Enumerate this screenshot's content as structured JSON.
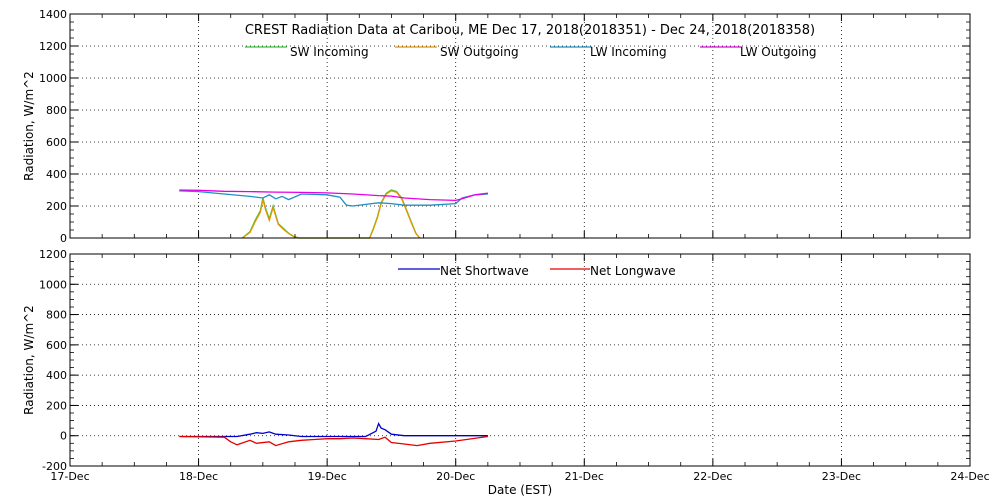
{
  "chart_data": [
    {
      "type": "line",
      "title": "CREST Radiation Data at Caribou, ME   Dec 17, 2018(2018351) - Dec 24, 2018(2018358)",
      "xlabel": "",
      "ylabel": "Radiation, W/m^2",
      "ylim": [
        0,
        1400
      ],
      "yticks": [
        0,
        200,
        400,
        600,
        800,
        1000,
        1200,
        1400
      ],
      "xlim": [
        0,
        7
      ],
      "grid": true,
      "legend_position": "top",
      "series": [
        {
          "name": "SW Incoming",
          "color": "#33cc33",
          "x": [
            1.34,
            1.4,
            1.44,
            1.48,
            1.5,
            1.52,
            1.55,
            1.58,
            1.62,
            1.66,
            1.7,
            1.74,
            1.78,
            2.33,
            2.36,
            2.39,
            2.42,
            2.46,
            2.5,
            2.54,
            2.58,
            2.62,
            2.66,
            2.69,
            2.72
          ],
          "y": [
            0,
            40,
            110,
            170,
            250,
            190,
            120,
            200,
            90,
            60,
            30,
            10,
            0,
            0,
            60,
            130,
            220,
            280,
            300,
            290,
            250,
            170,
            90,
            30,
            0
          ]
        },
        {
          "name": "SW Outgoing",
          "color": "#e69500",
          "x": [
            1.34,
            1.4,
            1.44,
            1.48,
            1.5,
            1.52,
            1.55,
            1.58,
            1.62,
            1.66,
            1.7,
            1.74,
            1.78,
            2.33,
            2.36,
            2.39,
            2.42,
            2.46,
            2.5,
            2.54,
            2.58,
            2.62,
            2.66,
            2.69,
            2.72
          ],
          "y": [
            0,
            35,
            100,
            160,
            240,
            180,
            110,
            190,
            85,
            55,
            28,
            8,
            0,
            0,
            55,
            125,
            215,
            275,
            295,
            285,
            245,
            165,
            85,
            28,
            0
          ]
        },
        {
          "name": "LW Incoming",
          "color": "#1e90c8",
          "x": [
            0.85,
            1.0,
            1.2,
            1.4,
            1.5,
            1.55,
            1.6,
            1.65,
            1.7,
            1.8,
            2.0,
            2.1,
            2.15,
            2.2,
            2.3,
            2.4,
            2.5,
            2.6,
            2.8,
            3.0,
            3.05,
            3.15,
            3.25
          ],
          "y": [
            295,
            290,
            275,
            260,
            250,
            270,
            245,
            260,
            240,
            275,
            270,
            255,
            205,
            200,
            210,
            220,
            215,
            205,
            205,
            215,
            250,
            270,
            275
          ]
        },
        {
          "name": "LW Outgoing",
          "color": "#e600e6",
          "x": [
            0.85,
            1.0,
            1.2,
            1.4,
            1.6,
            1.8,
            2.0,
            2.2,
            2.4,
            2.5,
            2.6,
            2.8,
            3.0,
            3.05,
            3.15,
            3.25
          ],
          "y": [
            300,
            298,
            292,
            290,
            287,
            285,
            282,
            275,
            265,
            262,
            250,
            240,
            235,
            245,
            270,
            280
          ]
        }
      ]
    },
    {
      "type": "line",
      "xlabel": "Date (EST)",
      "ylabel": "Radiation, W/m^2",
      "ylim": [
        -200,
        1200
      ],
      "yticks": [
        -200,
        0,
        200,
        400,
        600,
        800,
        1000,
        1200
      ],
      "xlim": [
        0,
        7
      ],
      "categories": [
        "17-Dec",
        "18-Dec",
        "19-Dec",
        "20-Dec",
        "21-Dec",
        "22-Dec",
        "23-Dec",
        "24-Dec"
      ],
      "grid": true,
      "legend_position": "top",
      "series": [
        {
          "name": "Net Shortwave",
          "color": "#0000cc",
          "x": [
            0.85,
            1.3,
            1.4,
            1.45,
            1.5,
            1.55,
            1.6,
            1.7,
            1.8,
            2.0,
            2.3,
            2.38,
            2.4,
            2.42,
            2.45,
            2.5,
            2.6,
            3.0,
            3.25
          ],
          "y": [
            -5,
            -5,
            10,
            20,
            15,
            25,
            10,
            5,
            -5,
            -5,
            -5,
            30,
            80,
            50,
            40,
            10,
            0,
            0,
            0
          ]
        },
        {
          "name": "Net Longwave",
          "color": "#e60000",
          "x": [
            0.85,
            1.2,
            1.25,
            1.3,
            1.4,
            1.45,
            1.55,
            1.6,
            1.7,
            1.8,
            1.9,
            2.0,
            2.1,
            2.2,
            2.3,
            2.4,
            2.45,
            2.5,
            2.6,
            2.7,
            2.8,
            3.0,
            3.25
          ],
          "y": [
            -5,
            -10,
            -40,
            -60,
            -30,
            -50,
            -40,
            -65,
            -40,
            -30,
            -25,
            -20,
            -20,
            -15,
            -20,
            -25,
            -10,
            -45,
            -55,
            -65,
            -50,
            -35,
            -5
          ]
        }
      ]
    }
  ]
}
